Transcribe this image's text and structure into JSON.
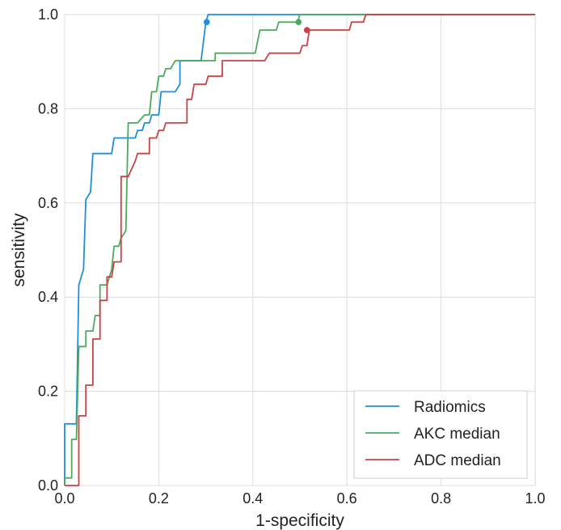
{
  "chart_data": {
    "type": "line",
    "title": "",
    "xlabel": "1-specificity",
    "ylabel": "sensitivity",
    "xlim": [
      0.0,
      1.0
    ],
    "ylim": [
      0.0,
      1.0
    ],
    "xticks": [
      "0.0",
      "0.2",
      "0.4",
      "0.6",
      "0.8",
      "1.0"
    ],
    "yticks": [
      "0.0",
      "0.2",
      "0.4",
      "0.6",
      "0.8",
      "1.0"
    ],
    "grid": true,
    "legend_position": "bottom-right",
    "series": [
      {
        "name": "Radiomics",
        "color": "#1f8fdc",
        "points": [
          [
            0.0,
            0.0
          ],
          [
            0.0,
            0.131
          ],
          [
            0.025,
            0.131
          ],
          [
            0.03,
            0.426
          ],
          [
            0.04,
            0.459
          ],
          [
            0.045,
            0.607
          ],
          [
            0.055,
            0.623
          ],
          [
            0.06,
            0.705
          ],
          [
            0.1,
            0.705
          ],
          [
            0.105,
            0.738
          ],
          [
            0.15,
            0.738
          ],
          [
            0.155,
            0.754
          ],
          [
            0.165,
            0.754
          ],
          [
            0.17,
            0.77
          ],
          [
            0.18,
            0.77
          ],
          [
            0.185,
            0.787
          ],
          [
            0.2,
            0.787
          ],
          [
            0.205,
            0.836
          ],
          [
            0.235,
            0.836
          ],
          [
            0.245,
            0.852
          ],
          [
            0.245,
            0.902
          ],
          [
            0.29,
            0.902
          ],
          [
            0.3,
            0.984
          ],
          [
            0.305,
            1.0
          ],
          [
            1.0,
            1.0
          ]
        ],
        "marker": [
          0.302,
          0.984
        ]
      },
      {
        "name": "AKC median",
        "color": "#4caa5e",
        "points": [
          [
            0.0,
            0.0
          ],
          [
            0.0,
            0.016
          ],
          [
            0.015,
            0.016
          ],
          [
            0.015,
            0.098
          ],
          [
            0.025,
            0.098
          ],
          [
            0.03,
            0.295
          ],
          [
            0.045,
            0.295
          ],
          [
            0.045,
            0.328
          ],
          [
            0.06,
            0.328
          ],
          [
            0.065,
            0.361
          ],
          [
            0.075,
            0.361
          ],
          [
            0.075,
            0.426
          ],
          [
            0.09,
            0.426
          ],
          [
            0.1,
            0.459
          ],
          [
            0.105,
            0.508
          ],
          [
            0.115,
            0.508
          ],
          [
            0.12,
            0.525
          ],
          [
            0.13,
            0.541
          ],
          [
            0.135,
            0.77
          ],
          [
            0.155,
            0.77
          ],
          [
            0.17,
            0.787
          ],
          [
            0.18,
            0.787
          ],
          [
            0.185,
            0.836
          ],
          [
            0.195,
            0.836
          ],
          [
            0.2,
            0.869
          ],
          [
            0.21,
            0.869
          ],
          [
            0.215,
            0.885
          ],
          [
            0.225,
            0.885
          ],
          [
            0.235,
            0.902
          ],
          [
            0.32,
            0.902
          ],
          [
            0.32,
            0.918
          ],
          [
            0.405,
            0.918
          ],
          [
            0.415,
            0.967
          ],
          [
            0.45,
            0.967
          ],
          [
            0.455,
            0.984
          ],
          [
            0.495,
            0.984
          ],
          [
            0.5,
            1.0
          ],
          [
            1.0,
            1.0
          ]
        ],
        "marker": [
          0.497,
          0.984
        ]
      },
      {
        "name": "ADC median",
        "color": "#c94245",
        "points": [
          [
            0.0,
            0.0
          ],
          [
            0.03,
            0.0
          ],
          [
            0.03,
            0.148
          ],
          [
            0.045,
            0.148
          ],
          [
            0.045,
            0.213
          ],
          [
            0.06,
            0.213
          ],
          [
            0.06,
            0.311
          ],
          [
            0.075,
            0.311
          ],
          [
            0.075,
            0.393
          ],
          [
            0.09,
            0.393
          ],
          [
            0.09,
            0.443
          ],
          [
            0.1,
            0.443
          ],
          [
            0.105,
            0.475
          ],
          [
            0.12,
            0.475
          ],
          [
            0.12,
            0.656
          ],
          [
            0.135,
            0.656
          ],
          [
            0.15,
            0.689
          ],
          [
            0.155,
            0.705
          ],
          [
            0.18,
            0.705
          ],
          [
            0.18,
            0.738
          ],
          [
            0.195,
            0.738
          ],
          [
            0.2,
            0.754
          ],
          [
            0.21,
            0.754
          ],
          [
            0.215,
            0.77
          ],
          [
            0.26,
            0.77
          ],
          [
            0.26,
            0.82
          ],
          [
            0.27,
            0.82
          ],
          [
            0.275,
            0.852
          ],
          [
            0.3,
            0.852
          ],
          [
            0.305,
            0.869
          ],
          [
            0.335,
            0.869
          ],
          [
            0.335,
            0.902
          ],
          [
            0.425,
            0.902
          ],
          [
            0.435,
            0.918
          ],
          [
            0.5,
            0.918
          ],
          [
            0.505,
            0.934
          ],
          [
            0.515,
            0.934
          ],
          [
            0.52,
            0.967
          ],
          [
            0.605,
            0.967
          ],
          [
            0.61,
            0.984
          ],
          [
            0.635,
            0.984
          ],
          [
            0.64,
            1.0
          ],
          [
            1.0,
            1.0
          ]
        ],
        "marker": [
          0.515,
          0.967
        ]
      }
    ]
  }
}
